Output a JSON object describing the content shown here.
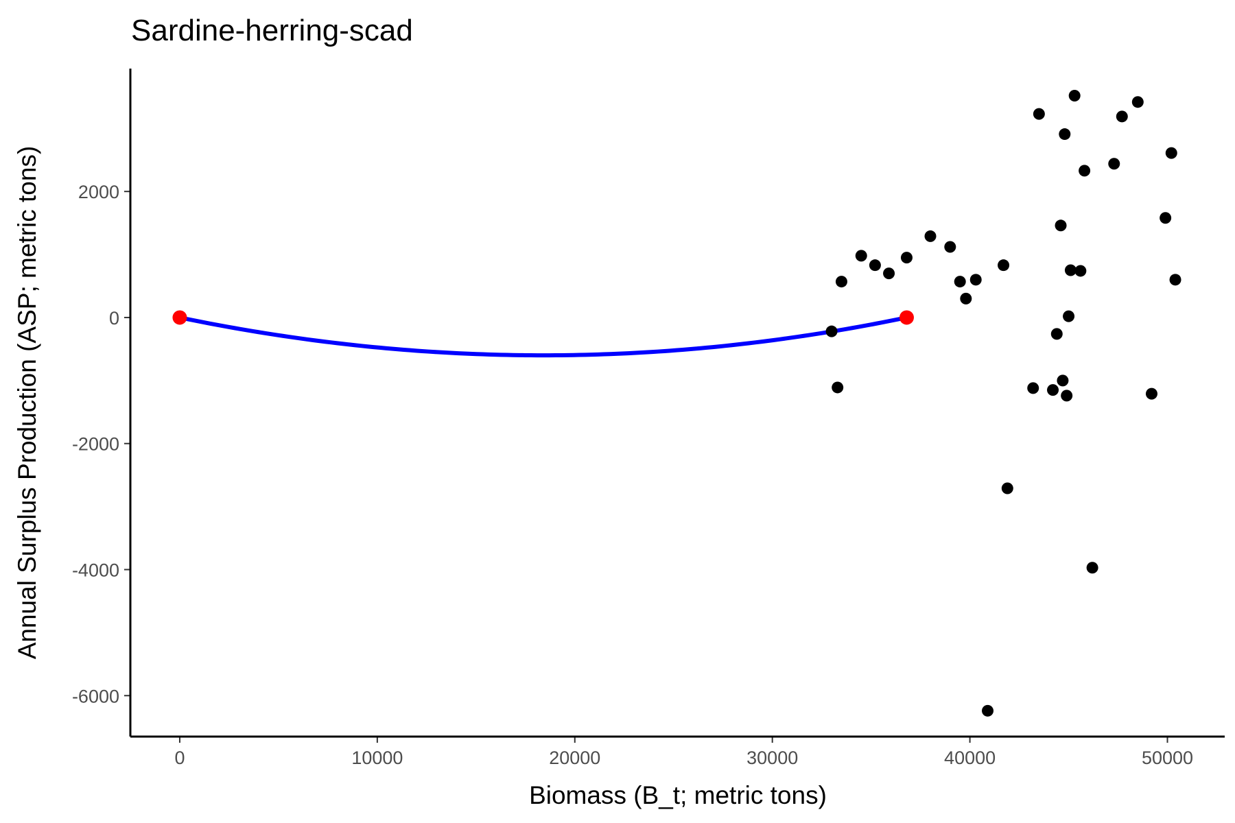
{
  "chart_data": {
    "type": "scatter",
    "title": "Sardine-herring-scad",
    "xlabel": "Biomass (B_t; metric tons)",
    "ylabel": "Annual Surplus Production (ASP; metric tons)",
    "xlim": [
      -2500,
      52900
    ],
    "ylim": [
      -6650,
      3950
    ],
    "x_ticks": [
      0,
      10000,
      20000,
      30000,
      40000,
      50000
    ],
    "y_ticks": [
      -6000,
      -4000,
      -2000,
      0,
      2000
    ],
    "grid": false,
    "legend": "none",
    "colors": {
      "points": "#000000",
      "curve": "#0000ff",
      "endpoints": "#ff0000"
    },
    "points": [
      {
        "x": 33000,
        "y": -220
      },
      {
        "x": 33300,
        "y": -1110
      },
      {
        "x": 33500,
        "y": 570
      },
      {
        "x": 34500,
        "y": 980
      },
      {
        "x": 35200,
        "y": 830
      },
      {
        "x": 35900,
        "y": 700
      },
      {
        "x": 36800,
        "y": 950
      },
      {
        "x": 38000,
        "y": 1290
      },
      {
        "x": 39000,
        "y": 1120
      },
      {
        "x": 39500,
        "y": 570
      },
      {
        "x": 39800,
        "y": 300
      },
      {
        "x": 40300,
        "y": 600
      },
      {
        "x": 40900,
        "y": -6240
      },
      {
        "x": 41700,
        "y": 830
      },
      {
        "x": 41900,
        "y": -2710
      },
      {
        "x": 43200,
        "y": -1120
      },
      {
        "x": 43500,
        "y": 3230
      },
      {
        "x": 44200,
        "y": -1150
      },
      {
        "x": 44400,
        "y": -260
      },
      {
        "x": 44600,
        "y": 1460
      },
      {
        "x": 44700,
        "y": -1000
      },
      {
        "x": 44800,
        "y": 2910
      },
      {
        "x": 44900,
        "y": -1240
      },
      {
        "x": 45000,
        "y": 20
      },
      {
        "x": 45100,
        "y": 750
      },
      {
        "x": 45300,
        "y": 3520
      },
      {
        "x": 45600,
        "y": 740
      },
      {
        "x": 45800,
        "y": 2330
      },
      {
        "x": 46200,
        "y": -3970
      },
      {
        "x": 47300,
        "y": 2440
      },
      {
        "x": 47700,
        "y": 3190
      },
      {
        "x": 48500,
        "y": 3420
      },
      {
        "x": 49200,
        "y": -1210
      },
      {
        "x": 49900,
        "y": 1580
      },
      {
        "x": 50200,
        "y": 2610
      },
      {
        "x": 50400,
        "y": 600
      }
    ],
    "fitted_curve": {
      "type": "parabola",
      "x_start": 0,
      "x_end": 36800,
      "vertex": {
        "x": 18400,
        "y": -600
      }
    },
    "endpoints": [
      {
        "x": 0,
        "y": 0
      },
      {
        "x": 36800,
        "y": 0
      }
    ]
  }
}
